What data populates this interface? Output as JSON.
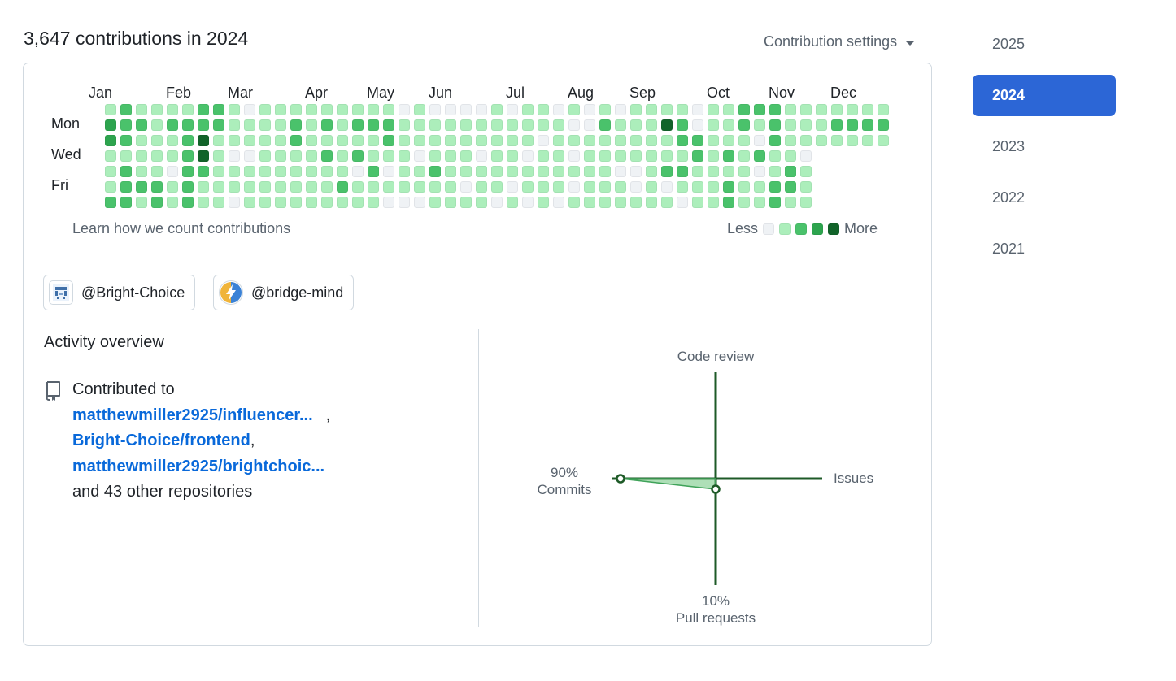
{
  "header": {
    "title": "3,647 contributions in 2024",
    "settings_label": "Contribution settings"
  },
  "calendar": {
    "months": [
      "Jan",
      "Feb",
      "Mar",
      "Apr",
      "May",
      "Jun",
      "Jul",
      "Aug",
      "Sep",
      "Oct",
      "Nov",
      "Dec"
    ],
    "days": [
      "Mon",
      "Wed",
      "Fri"
    ],
    "colors": [
      "#eff2f5",
      "#aceebb",
      "#4ac26b",
      "#2da44e",
      "#116329"
    ],
    "cells": [
      [
        null,
        null,
        null,
        null,
        null,
        null,
        null
      ],
      [
        1,
        3,
        3,
        1,
        1,
        1,
        2
      ],
      [
        2,
        2,
        2,
        1,
        2,
        2,
        2
      ],
      [
        1,
        2,
        1,
        1,
        1,
        2,
        1
      ],
      [
        1,
        1,
        1,
        1,
        1,
        2,
        2
      ],
      [
        1,
        2,
        1,
        1,
        0,
        1,
        1
      ],
      [
        1,
        2,
        2,
        2,
        2,
        2,
        2
      ],
      [
        2,
        2,
        4,
        4,
        2,
        1,
        1
      ],
      [
        2,
        2,
        1,
        1,
        1,
        1,
        1
      ],
      [
        1,
        1,
        1,
        0,
        1,
        1,
        0
      ],
      [
        0,
        1,
        1,
        0,
        1,
        1,
        1
      ],
      [
        1,
        1,
        1,
        1,
        1,
        1,
        1
      ],
      [
        1,
        1,
        1,
        1,
        1,
        1,
        1
      ],
      [
        1,
        2,
        2,
        1,
        1,
        1,
        1
      ],
      [
        1,
        1,
        1,
        1,
        1,
        1,
        1
      ],
      [
        1,
        2,
        1,
        2,
        1,
        1,
        1
      ],
      [
        1,
        1,
        1,
        1,
        1,
        2,
        1
      ],
      [
        1,
        2,
        1,
        2,
        0,
        1,
        1
      ],
      [
        1,
        2,
        1,
        1,
        2,
        1,
        1
      ],
      [
        1,
        2,
        2,
        1,
        0,
        1,
        0
      ],
      [
        0,
        1,
        1,
        1,
        1,
        1,
        0
      ],
      [
        1,
        1,
        1,
        0,
        1,
        1,
        0
      ],
      [
        0,
        1,
        1,
        1,
        2,
        1,
        1
      ],
      [
        0,
        1,
        1,
        1,
        1,
        1,
        1
      ],
      [
        0,
        1,
        1,
        1,
        1,
        0,
        1
      ],
      [
        0,
        1,
        1,
        0,
        1,
        1,
        1
      ],
      [
        1,
        1,
        1,
        1,
        1,
        1,
        0
      ],
      [
        0,
        1,
        1,
        1,
        1,
        0,
        1
      ],
      [
        1,
        1,
        1,
        0,
        1,
        1,
        0
      ],
      [
        1,
        1,
        0,
        1,
        1,
        1,
        1
      ],
      [
        0,
        1,
        1,
        1,
        1,
        1,
        0
      ],
      [
        1,
        0,
        1,
        0,
        1,
        0,
        1
      ],
      [
        0,
        0,
        1,
        1,
        1,
        1,
        1
      ],
      [
        1,
        2,
        1,
        1,
        1,
        1,
        1
      ],
      [
        0,
        1,
        1,
        1,
        0,
        1,
        1
      ],
      [
        1,
        1,
        1,
        1,
        0,
        0,
        1
      ],
      [
        1,
        1,
        1,
        1,
        1,
        1,
        1
      ],
      [
        1,
        4,
        1,
        1,
        2,
        0,
        1
      ],
      [
        1,
        2,
        2,
        1,
        2,
        1,
        0
      ],
      [
        0,
        0,
        2,
        2,
        1,
        1,
        1
      ],
      [
        1,
        1,
        1,
        1,
        1,
        1,
        1
      ],
      [
        1,
        1,
        1,
        2,
        1,
        2,
        2
      ],
      [
        2,
        2,
        1,
        1,
        1,
        1,
        1
      ],
      [
        2,
        1,
        0,
        2,
        0,
        1,
        1
      ],
      [
        2,
        2,
        2,
        1,
        1,
        2,
        2
      ],
      [
        1,
        1,
        1,
        1,
        2,
        2,
        1
      ],
      [
        1,
        1,
        1,
        0,
        1,
        1,
        1
      ],
      [
        1,
        1,
        1,
        null,
        null,
        null,
        null
      ],
      [
        1,
        2,
        1,
        null,
        null,
        null,
        null
      ],
      [
        1,
        2,
        1,
        null,
        null,
        null,
        null
      ],
      [
        1,
        2,
        1,
        null,
        null,
        null,
        null
      ],
      [
        1,
        2,
        1,
        null,
        null,
        null,
        null
      ]
    ],
    "learn_label": "Learn how we count contributions",
    "legend_less": "Less",
    "legend_more": "More"
  },
  "orgs": [
    {
      "label": "@Bright-Choice",
      "icon": "org-pixel-logo-icon"
    },
    {
      "label": "@bridge-mind",
      "icon": "lightning-logo-icon"
    }
  ],
  "activity": {
    "title": "Activity overview",
    "contributed_to": "Contributed to",
    "repos": [
      "matthewmiller2925/influencer...",
      "Bright-Choice/frontend",
      "matthewmiller2925/brightchoic..."
    ],
    "other": "and 43 other repositories"
  },
  "radar": {
    "code_review": "Code review",
    "issues": "Issues",
    "commits_pct": "90%",
    "commits": "Commits",
    "pull_requests_pct": "10%",
    "pull_requests": "Pull requests",
    "values": {
      "commits": 90,
      "pull_requests": 10,
      "code_review": 0,
      "issues": 0
    }
  },
  "years": [
    "2025",
    "2024",
    "2023",
    "2022",
    "2021"
  ],
  "selected_year": "2024"
}
